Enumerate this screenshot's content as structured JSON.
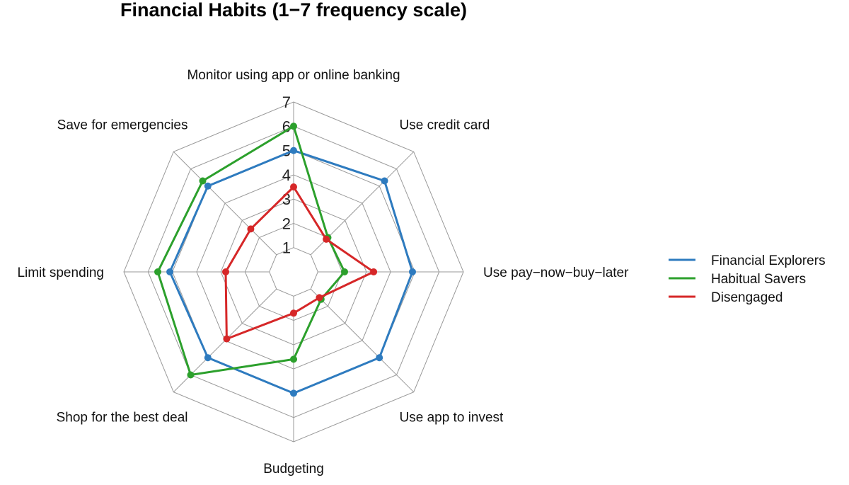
{
  "chart_data": {
    "type": "radar",
    "title": "Financial Habits (1−7 frequency scale)",
    "scale": {
      "min": 0,
      "max": 7,
      "ticks": [
        1,
        2,
        3,
        4,
        5,
        6,
        7
      ]
    },
    "axes": [
      "Monitor using app or online banking",
      "Use credit card",
      "Use pay−now−buy−later",
      "Use app to invest",
      "Budgeting",
      "Shop for the best deal",
      "Limit spending",
      "Save for emergencies"
    ],
    "legend_position": "right",
    "series": [
      {
        "name": "Financial Explorers",
        "color": "#2e7bbf",
        "values": [
          5.0,
          5.3,
          4.9,
          5.0,
          5.0,
          5.0,
          5.1,
          5.0
        ]
      },
      {
        "name": "Habitual Savers",
        "color": "#2ca02c",
        "values": [
          6.0,
          2.0,
          2.1,
          1.6,
          3.6,
          6.0,
          5.6,
          5.3
        ]
      },
      {
        "name": "Disengaged",
        "color": "#d62728",
        "values": [
          3.5,
          1.9,
          3.3,
          1.5,
          1.7,
          3.9,
          2.8,
          2.5
        ]
      }
    ]
  }
}
